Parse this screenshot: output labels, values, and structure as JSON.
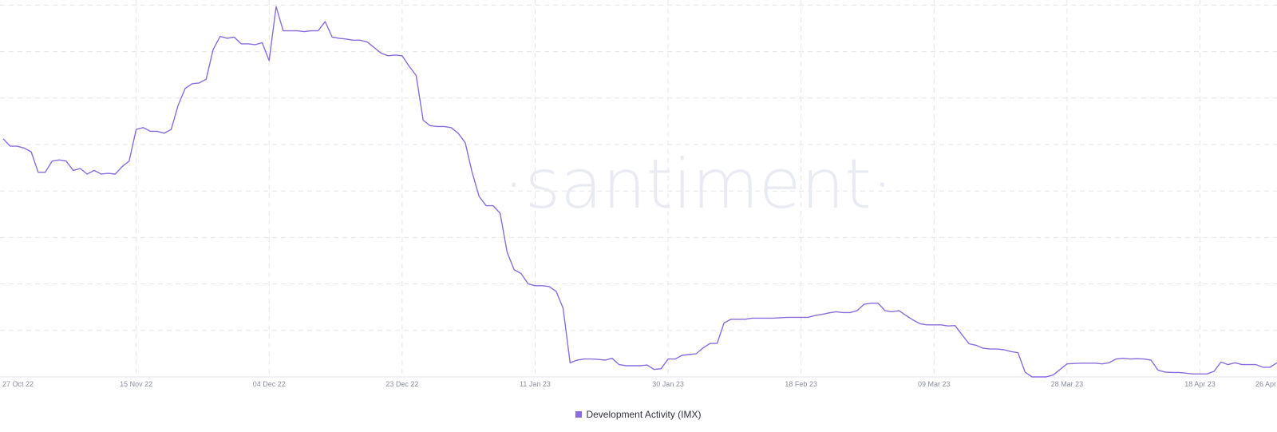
{
  "watermark": "·santiment·",
  "chart_data": {
    "type": "line",
    "title": "",
    "xlabel": "",
    "ylabel": "",
    "x_ticks": [
      "27 Oct 22",
      "15 Nov 22",
      "04 Dec 22",
      "23 Dec 22",
      "11 Jan 23",
      "30 Jan 23",
      "18 Feb 23",
      "09 Mar 23",
      "28 Mar 23",
      "18 Apr 23",
      "26 Apr"
    ],
    "x_range": [
      "2022-10-27",
      "2023-04-27"
    ],
    "ylim": [
      0,
      100
    ],
    "grid": true,
    "legend_position": "bottom-center",
    "series": [
      {
        "name": "Development Activity (IMX)",
        "color": "#8b6cdf",
        "points": [
          [
            "2022-10-27",
            64
          ],
          [
            "2022-10-28",
            62
          ],
          [
            "2022-10-29",
            62
          ],
          [
            "2022-10-30",
            61.5
          ],
          [
            "2022-10-31",
            60.5
          ],
          [
            "2022-11-01",
            55
          ],
          [
            "2022-11-02",
            55
          ],
          [
            "2022-11-03",
            58
          ],
          [
            "2022-11-04",
            58.3
          ],
          [
            "2022-11-05",
            58
          ],
          [
            "2022-11-06",
            55.5
          ],
          [
            "2022-11-07",
            56
          ],
          [
            "2022-11-08",
            54.5
          ],
          [
            "2022-11-09",
            55.5
          ],
          [
            "2022-11-10",
            54.5
          ],
          [
            "2022-11-11",
            54.7
          ],
          [
            "2022-11-12",
            54.5
          ],
          [
            "2022-11-13",
            56.5
          ],
          [
            "2022-11-14",
            58
          ],
          [
            "2022-11-15",
            66.5
          ],
          [
            "2022-11-16",
            67
          ],
          [
            "2022-11-17",
            66
          ],
          [
            "2022-11-18",
            66
          ],
          [
            "2022-11-19",
            65.5
          ],
          [
            "2022-11-20",
            66.5
          ],
          [
            "2022-11-21",
            73
          ],
          [
            "2022-11-22",
            77.5
          ],
          [
            "2022-11-23",
            78.8
          ],
          [
            "2022-11-24",
            79
          ],
          [
            "2022-11-25",
            80
          ],
          [
            "2022-11-26",
            88
          ],
          [
            "2022-11-27",
            91.5
          ],
          [
            "2022-11-28",
            91
          ],
          [
            "2022-11-29",
            91.3
          ],
          [
            "2022-11-30",
            89.5
          ],
          [
            "2022-12-01",
            89.5
          ],
          [
            "2022-12-02",
            89.3
          ],
          [
            "2022-12-03",
            89.8
          ],
          [
            "2022-12-04",
            85
          ],
          [
            "2022-12-05",
            99.5
          ],
          [
            "2022-12-06",
            93
          ],
          [
            "2022-12-07",
            93
          ],
          [
            "2022-12-08",
            93
          ],
          [
            "2022-12-09",
            92.8
          ],
          [
            "2022-12-10",
            93
          ],
          [
            "2022-12-11",
            93
          ],
          [
            "2022-12-12",
            95.5
          ],
          [
            "2022-12-13",
            91.3
          ],
          [
            "2022-12-14",
            91
          ],
          [
            "2022-12-15",
            90.8
          ],
          [
            "2022-12-16",
            90.5
          ],
          [
            "2022-12-17",
            90.5
          ],
          [
            "2022-12-18",
            90
          ],
          [
            "2022-12-19",
            88.5
          ],
          [
            "2022-12-20",
            87
          ],
          [
            "2022-12-21",
            86.3
          ],
          [
            "2022-12-22",
            86.5
          ],
          [
            "2022-12-23",
            86.3
          ],
          [
            "2022-12-24",
            83.5
          ],
          [
            "2022-12-25",
            81
          ],
          [
            "2022-12-26",
            69
          ],
          [
            "2022-12-27",
            67.5
          ],
          [
            "2022-12-28",
            67.3
          ],
          [
            "2022-12-29",
            67.3
          ],
          [
            "2022-12-30",
            67
          ],
          [
            "2022-12-31",
            65.5
          ],
          [
            "2023-01-01",
            63
          ],
          [
            "2023-01-02",
            55
          ],
          [
            "2023-01-03",
            48.5
          ],
          [
            "2023-01-04",
            46
          ],
          [
            "2023-01-05",
            46
          ],
          [
            "2023-01-06",
            44
          ],
          [
            "2023-01-07",
            33.5
          ],
          [
            "2023-01-08",
            28.8
          ],
          [
            "2023-01-09",
            27.8
          ],
          [
            "2023-01-10",
            25
          ],
          [
            "2023-01-11",
            24.5
          ],
          [
            "2023-01-12",
            24.5
          ],
          [
            "2023-01-13",
            24.3
          ],
          [
            "2023-01-14",
            23
          ],
          [
            "2023-01-15",
            18.5
          ],
          [
            "2023-01-16",
            3.8
          ],
          [
            "2023-01-17",
            4.5
          ],
          [
            "2023-01-18",
            4.8
          ],
          [
            "2023-01-19",
            4.8
          ],
          [
            "2023-01-20",
            4.7
          ],
          [
            "2023-01-21",
            4.5
          ],
          [
            "2023-01-22",
            5
          ],
          [
            "2023-01-23",
            3.3
          ],
          [
            "2023-01-24",
            3
          ],
          [
            "2023-01-25",
            3
          ],
          [
            "2023-01-26",
            3
          ],
          [
            "2023-01-27",
            3.2
          ],
          [
            "2023-01-28",
            2
          ],
          [
            "2023-01-29",
            2.2
          ],
          [
            "2023-01-30",
            4.8
          ],
          [
            "2023-01-31",
            4.8
          ],
          [
            "2023-02-01",
            5.8
          ],
          [
            "2023-02-02",
            6
          ],
          [
            "2023-02-03",
            6.2
          ],
          [
            "2023-02-04",
            7.8
          ],
          [
            "2023-02-05",
            9
          ],
          [
            "2023-02-06",
            9
          ],
          [
            "2023-02-07",
            14.5
          ],
          [
            "2023-02-08",
            15.5
          ],
          [
            "2023-02-09",
            15.5
          ],
          [
            "2023-02-10",
            15.5
          ],
          [
            "2023-02-11",
            15.8
          ],
          [
            "2023-02-12",
            15.8
          ],
          [
            "2023-02-13",
            15.8
          ],
          [
            "2023-02-14",
            15.8
          ],
          [
            "2023-02-15",
            15.9
          ],
          [
            "2023-02-16",
            16
          ],
          [
            "2023-02-17",
            16
          ],
          [
            "2023-02-18",
            16
          ],
          [
            "2023-02-19",
            16
          ],
          [
            "2023-02-20",
            16.5
          ],
          [
            "2023-02-21",
            16.8
          ],
          [
            "2023-02-22",
            17.2
          ],
          [
            "2023-02-23",
            17.5
          ],
          [
            "2023-02-24",
            17.3
          ],
          [
            "2023-02-25",
            17.3
          ],
          [
            "2023-02-26",
            17.8
          ],
          [
            "2023-02-27",
            19.5
          ],
          [
            "2023-02-28",
            19.8
          ],
          [
            "2023-03-01",
            19.8
          ],
          [
            "2023-03-02",
            17.8
          ],
          [
            "2023-03-03",
            17.5
          ],
          [
            "2023-03-04",
            17.8
          ],
          [
            "2023-03-05",
            16.5
          ],
          [
            "2023-03-06",
            15.3
          ],
          [
            "2023-03-07",
            14.3
          ],
          [
            "2023-03-08",
            14
          ],
          [
            "2023-03-09",
            14
          ],
          [
            "2023-03-10",
            14
          ],
          [
            "2023-03-11",
            13.7
          ],
          [
            "2023-03-12",
            13.8
          ],
          [
            "2023-03-13",
            11.3
          ],
          [
            "2023-03-14",
            8.9
          ],
          [
            "2023-03-15",
            8.5
          ],
          [
            "2023-03-16",
            7.7
          ],
          [
            "2023-03-17",
            7.5
          ],
          [
            "2023-03-18",
            7.5
          ],
          [
            "2023-03-19",
            7.3
          ],
          [
            "2023-03-20",
            6.8
          ],
          [
            "2023-03-21",
            6.5
          ],
          [
            "2023-03-22",
            1.3
          ],
          [
            "2023-03-23",
            0
          ],
          [
            "2023-03-24",
            0
          ],
          [
            "2023-03-25",
            0
          ],
          [
            "2023-03-26",
            0.5
          ],
          [
            "2023-03-27",
            2
          ],
          [
            "2023-03-28",
            3.5
          ],
          [
            "2023-03-29",
            3.6
          ],
          [
            "2023-03-30",
            3.7
          ],
          [
            "2023-03-31",
            3.7
          ],
          [
            "2023-04-01",
            3.7
          ],
          [
            "2023-04-02",
            3.5
          ],
          [
            "2023-04-03",
            3.8
          ],
          [
            "2023-04-04",
            4.8
          ],
          [
            "2023-04-05",
            5
          ],
          [
            "2023-04-06",
            4.8
          ],
          [
            "2023-04-07",
            4.9
          ],
          [
            "2023-04-08",
            4.8
          ],
          [
            "2023-04-09",
            4.5
          ],
          [
            "2023-04-10",
            1.8
          ],
          [
            "2023-04-11",
            1.3
          ],
          [
            "2023-04-12",
            1.2
          ],
          [
            "2023-04-13",
            1.2
          ],
          [
            "2023-04-14",
            1
          ],
          [
            "2023-04-15",
            0.8
          ],
          [
            "2023-04-16",
            0.8
          ],
          [
            "2023-04-17",
            0.8
          ],
          [
            "2023-04-18",
            1.5
          ],
          [
            "2023-04-19",
            4
          ],
          [
            "2023-04-20",
            3.3
          ],
          [
            "2023-04-21",
            3.8
          ],
          [
            "2023-04-22",
            3.3
          ],
          [
            "2023-04-23",
            3.3
          ],
          [
            "2023-04-24",
            3.3
          ],
          [
            "2023-04-25",
            2.6
          ],
          [
            "2023-04-26",
            2.6
          ],
          [
            "2023-04-27",
            3.8
          ]
        ]
      }
    ]
  }
}
